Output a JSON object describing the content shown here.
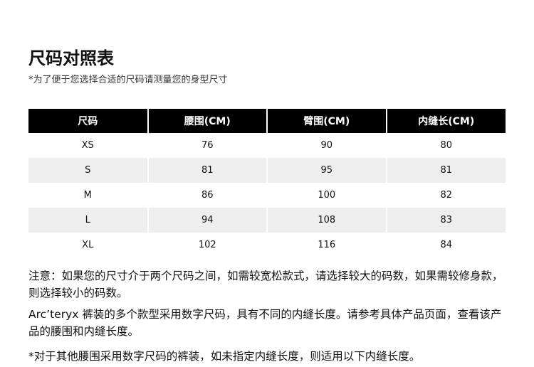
{
  "title": "尺码对照表",
  "subtitle": "*为了便于您选择合适的尺码请测量您的身型尺寸",
  "table": {
    "headers": [
      "尺码",
      "腰围(CM)",
      "臂围(CM)",
      "内缝长(CM)"
    ],
    "rows": [
      [
        "XS",
        "76",
        "90",
        "80"
      ],
      [
        "S",
        "81",
        "95",
        "81"
      ],
      [
        "M",
        "86",
        "100",
        "82"
      ],
      [
        "L",
        "94",
        "108",
        "83"
      ],
      [
        "XL",
        "102",
        "116",
        "84"
      ]
    ]
  },
  "notes": [
    "注意：如果您的尺寸介于两个尺码之间，如需较宽松款式，请选择较大的码数，如果需较修身款，则选择较小的码数。",
    "Arc’teryx 裤装的多个款型采用数字尺码，具有不同的内缝长度。请参考具体产品页面，查看该产品的腰围和内缝长度。"
  ],
  "footnote": "*对于其他腰围采用数字尺码的裤装，如未指定内缝长度，则适用以下内缝长度。"
}
